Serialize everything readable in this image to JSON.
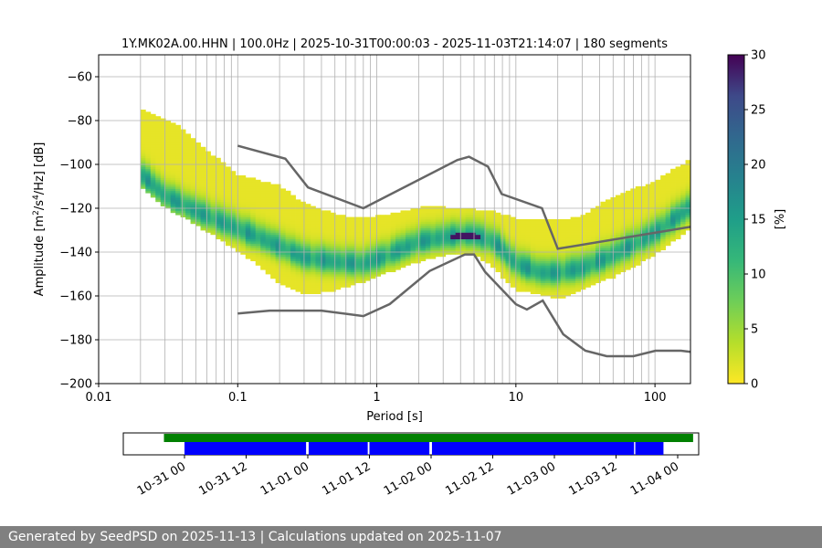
{
  "chart_data": [
    {
      "type": "heatmap",
      "title": "1Y.MK02A.00.HHN | 100.0Hz | 2025-10-31T00:00:03 - 2025-11-03T21:14:07 | 180 segments",
      "xlabel": "Period [s]",
      "ylabel_main": "Amplitude [m",
      "ylabel_sup1": "2",
      "ylabel_mid": "/s",
      "ylabel_sup2": "4",
      "ylabel_end": "/Hz] [dB]",
      "xscale": "log",
      "xlim": [
        0.01,
        180
      ],
      "ylim": [
        -200,
        -50
      ],
      "xticks": [
        0.01,
        0.1,
        1,
        10,
        100
      ],
      "xtick_labels": [
        "0.01",
        "0.1",
        "1",
        "10",
        "100"
      ],
      "yticks": [
        -200,
        -180,
        -160,
        -140,
        -120,
        -100,
        -80,
        -60
      ],
      "ytick_labels": [
        "−200",
        "−180",
        "−160",
        "−140",
        "−120",
        "−100",
        "−80",
        "−60"
      ],
      "grid_periods": [
        0.02,
        0.03,
        0.04,
        0.05,
        0.06,
        0.07,
        0.08,
        0.09,
        0.1,
        0.2,
        0.3,
        0.4,
        0.5,
        0.6,
        0.7,
        0.8,
        0.9,
        1,
        2,
        3,
        4,
        5,
        6,
        7,
        8,
        9,
        10,
        20,
        30,
        40,
        50,
        60,
        70,
        80,
        90,
        100
      ],
      "colorbar": {
        "label": "[%]",
        "min": 0,
        "max": 30,
        "ticks": [
          0,
          5,
          10,
          15,
          20,
          25,
          30
        ],
        "tick_labels": [
          "0",
          "5",
          "10",
          "15",
          "20",
          "25",
          "30"
        ]
      },
      "series": [
        {
          "name": "Mode",
          "role": "mode",
          "points": [
            [
              0.02,
              -105
            ],
            [
              0.03,
              -115
            ],
            [
              0.05,
              -122
            ],
            [
              0.1,
              -130
            ],
            [
              0.2,
              -138
            ],
            [
              0.3,
              -143
            ],
            [
              0.5,
              -145
            ],
            [
              0.8,
              -146
            ],
            [
              1.2,
              -142
            ],
            [
              2,
              -136
            ],
            [
              3,
              -134
            ],
            [
              4,
              -133
            ],
            [
              5,
              -133
            ],
            [
              7,
              -136
            ],
            [
              10,
              -146
            ],
            [
              15,
              -150
            ],
            [
              20,
              -150
            ],
            [
              30,
              -148
            ],
            [
              50,
              -142
            ],
            [
              100,
              -132
            ],
            [
              180,
              -120
            ]
          ]
        },
        {
          "name": "Upper envelope",
          "role": "upper",
          "points": [
            [
              0.02,
              -75
            ],
            [
              0.03,
              -80
            ],
            [
              0.04,
              -84
            ],
            [
              0.05,
              -90
            ],
            [
              0.08,
              -100
            ],
            [
              0.1,
              -105
            ],
            [
              0.2,
              -110
            ],
            [
              0.3,
              -118
            ],
            [
              0.5,
              -123
            ],
            [
              0.7,
              -125
            ],
            [
              1,
              -124
            ],
            [
              1.5,
              -122
            ],
            [
              2,
              -120
            ],
            [
              3,
              -120
            ],
            [
              5,
              -121
            ],
            [
              7,
              -122
            ],
            [
              10,
              -125
            ],
            [
              20,
              -126
            ],
            [
              30,
              -124
            ],
            [
              50,
              -115
            ],
            [
              100,
              -108
            ],
            [
              180,
              -98
            ]
          ]
        },
        {
          "name": "Lower envelope",
          "role": "lower",
          "points": [
            [
              0.02,
              -110
            ],
            [
              0.03,
              -120
            ],
            [
              0.05,
              -128
            ],
            [
              0.1,
              -140
            ],
            [
              0.15,
              -148
            ],
            [
              0.2,
              -155
            ],
            [
              0.3,
              -160
            ],
            [
              0.5,
              -158
            ],
            [
              0.8,
              -154
            ],
            [
              1.2,
              -150
            ],
            [
              2,
              -145
            ],
            [
              3,
              -142
            ],
            [
              5,
              -141
            ],
            [
              7,
              -148
            ],
            [
              10,
              -158
            ],
            [
              15,
              -160
            ],
            [
              20,
              -162
            ],
            [
              30,
              -158
            ],
            [
              50,
              -152
            ],
            [
              100,
              -142
            ],
            [
              180,
              -130
            ]
          ]
        },
        {
          "name": "High Noise Model",
          "role": "nhnm",
          "points": [
            [
              0.1,
              -91.5
            ],
            [
              0.22,
              -97.4
            ],
            [
              0.32,
              -110.5
            ],
            [
              0.8,
              -120
            ],
            [
              3.8,
              -98
            ],
            [
              4.6,
              -96.5
            ],
            [
              6.3,
              -101
            ],
            [
              7.9,
              -113.5
            ],
            [
              15.4,
              -120
            ],
            [
              20,
              -138.5
            ],
            [
              180,
              -128.5
            ]
          ]
        },
        {
          "name": "Low Noise Model",
          "role": "nlnm",
          "points": [
            [
              0.1,
              -168
            ],
            [
              0.17,
              -166.7
            ],
            [
              0.4,
              -166.7
            ],
            [
              0.8,
              -169.2
            ],
            [
              1.24,
              -163.7
            ],
            [
              2.4,
              -148.6
            ],
            [
              4.3,
              -141.1
            ],
            [
              5,
              -141.1
            ],
            [
              6,
              -149
            ],
            [
              10,
              -163.8
            ],
            [
              12,
              -166.2
            ],
            [
              15.6,
              -162.1
            ],
            [
              21.9,
              -177.5
            ],
            [
              31.6,
              -185
            ],
            [
              45,
              -187.5
            ],
            [
              70,
              -187.5
            ],
            [
              101,
              -185
            ],
            [
              154,
              -185
            ],
            [
              180,
              -185.5
            ]
          ]
        }
      ]
    },
    {
      "type": "timeline",
      "series": [
        {
          "name": "Data availability",
          "color": "#008000",
          "ranges": [
            [
              "2025-10-30T20:00",
              "2025-11-04T03:00"
            ]
          ]
        },
        {
          "name": "PSD segments",
          "color": "#0000ff",
          "ranges": [
            [
              "2025-10-31T00:00",
              "2025-10-31T23:40"
            ],
            [
              "2025-11-01T00:10",
              "2025-11-01T11:40"
            ],
            [
              "2025-11-01T12:00",
              "2025-11-01T23:40"
            ],
            [
              "2025-11-02T00:10",
              "2025-11-03T15:30"
            ],
            [
              "2025-11-03T15:45",
              "2025-11-03T21:14"
            ]
          ]
        }
      ],
      "tick_labels": [
        "10-31 00",
        "10-31 12",
        "11-01 00",
        "11-01 12",
        "11-02 00",
        "11-02 12",
        "11-03 00",
        "11-03 12",
        "11-04 00"
      ]
    }
  ],
  "colors": {
    "nm_line": "#666666",
    "availability": "#008000",
    "segments": "#0000ff",
    "footer_bg": "#808080"
  },
  "footer": {
    "text": "Generated by SeedPSD on 2025-11-13 | Calculations updated on 2025-11-07"
  }
}
